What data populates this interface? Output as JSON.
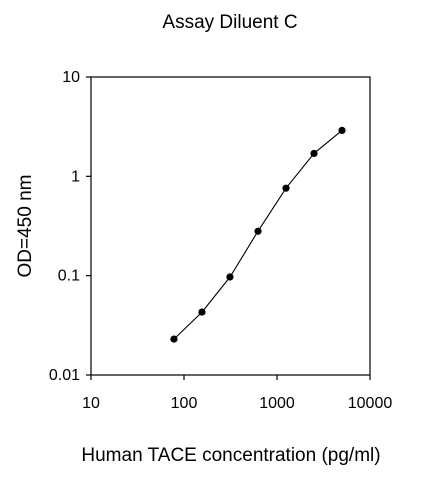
{
  "chart_data": {
    "type": "line",
    "title": "Assay Diluent C",
    "xlabel": "Human TACE concentration (pg/ml)",
    "ylabel": "OD=450 nm",
    "x_scale": "log",
    "y_scale": "log",
    "xlim": [
      10,
      10000
    ],
    "ylim": [
      0.01,
      10
    ],
    "x_ticks": [
      "10",
      "100",
      "1000",
      "10000"
    ],
    "y_ticks": [
      "0.01",
      "0.1",
      "1",
      "10"
    ],
    "x_tick_values": [
      10,
      100,
      1000,
      10000
    ],
    "y_tick_values": [
      0.01,
      0.1,
      1,
      10
    ],
    "grid": false,
    "legend": "none",
    "series": [
      {
        "x": [
          78,
          156,
          312,
          625,
          1250,
          2500,
          5000
        ],
        "values": [
          0.023,
          0.043,
          0.097,
          0.28,
          0.76,
          1.7,
          2.9
        ]
      }
    ],
    "colors": {
      "marker": "#000000",
      "line": "#000000",
      "axes": "#000000"
    }
  }
}
